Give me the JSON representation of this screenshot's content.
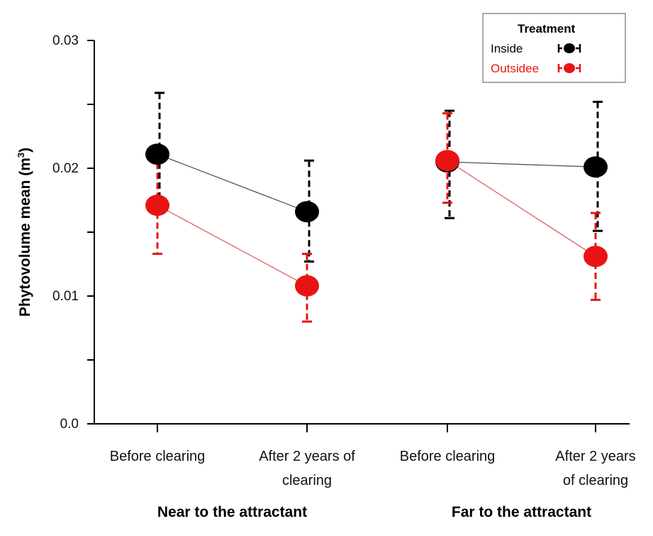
{
  "chart_data": {
    "type": "line",
    "title": "",
    "ylabel_main": "Phytovolume mean (m",
    "ylabel_sup": "3",
    "ylabel_end": ")",
    "ylim": [
      0,
      0.03
    ],
    "yticks": [
      {
        "value": 0.0,
        "label": "0.0"
      },
      {
        "value": 0.01,
        "label": "0.01"
      },
      {
        "value": 0.02,
        "label": "0.02"
      },
      {
        "value": 0.03,
        "label": "0.03"
      }
    ],
    "yminor": [
      0.005,
      0.015,
      0.025
    ],
    "categories": [
      {
        "lines": [
          "Before clearing"
        ]
      },
      {
        "lines": [
          "After 2 years of",
          "clearing"
        ]
      },
      {
        "lines": [
          "Before clearing"
        ]
      },
      {
        "lines": [
          "After 2 years",
          "of clearing"
        ]
      }
    ],
    "groups": [
      {
        "label": "Near to the attractant",
        "categories": [
          0,
          1
        ]
      },
      {
        "label": "Far to the attractant",
        "categories": [
          2,
          3
        ]
      }
    ],
    "legend": {
      "title": "Treatment",
      "position": "top-right"
    },
    "series": [
      {
        "name": "Inside",
        "color": "#000000",
        "line_color": "#555555",
        "values": [
          0.0211,
          0.0166,
          0.0205,
          0.0201
        ],
        "upper": [
          0.0259,
          0.0206,
          0.0245,
          0.0252
        ],
        "lower": [
          0.017,
          0.0127,
          0.0161,
          0.0151
        ]
      },
      {
        "name": "Outsidee",
        "color": "#e81414",
        "line_color": "#e06060",
        "values": [
          0.0171,
          0.0108,
          0.0206,
          0.0131
        ],
        "upper": [
          0.0212,
          0.0133,
          0.0243,
          0.0165
        ],
        "lower": [
          0.0133,
          0.008,
          0.0173,
          0.0097
        ]
      }
    ]
  }
}
